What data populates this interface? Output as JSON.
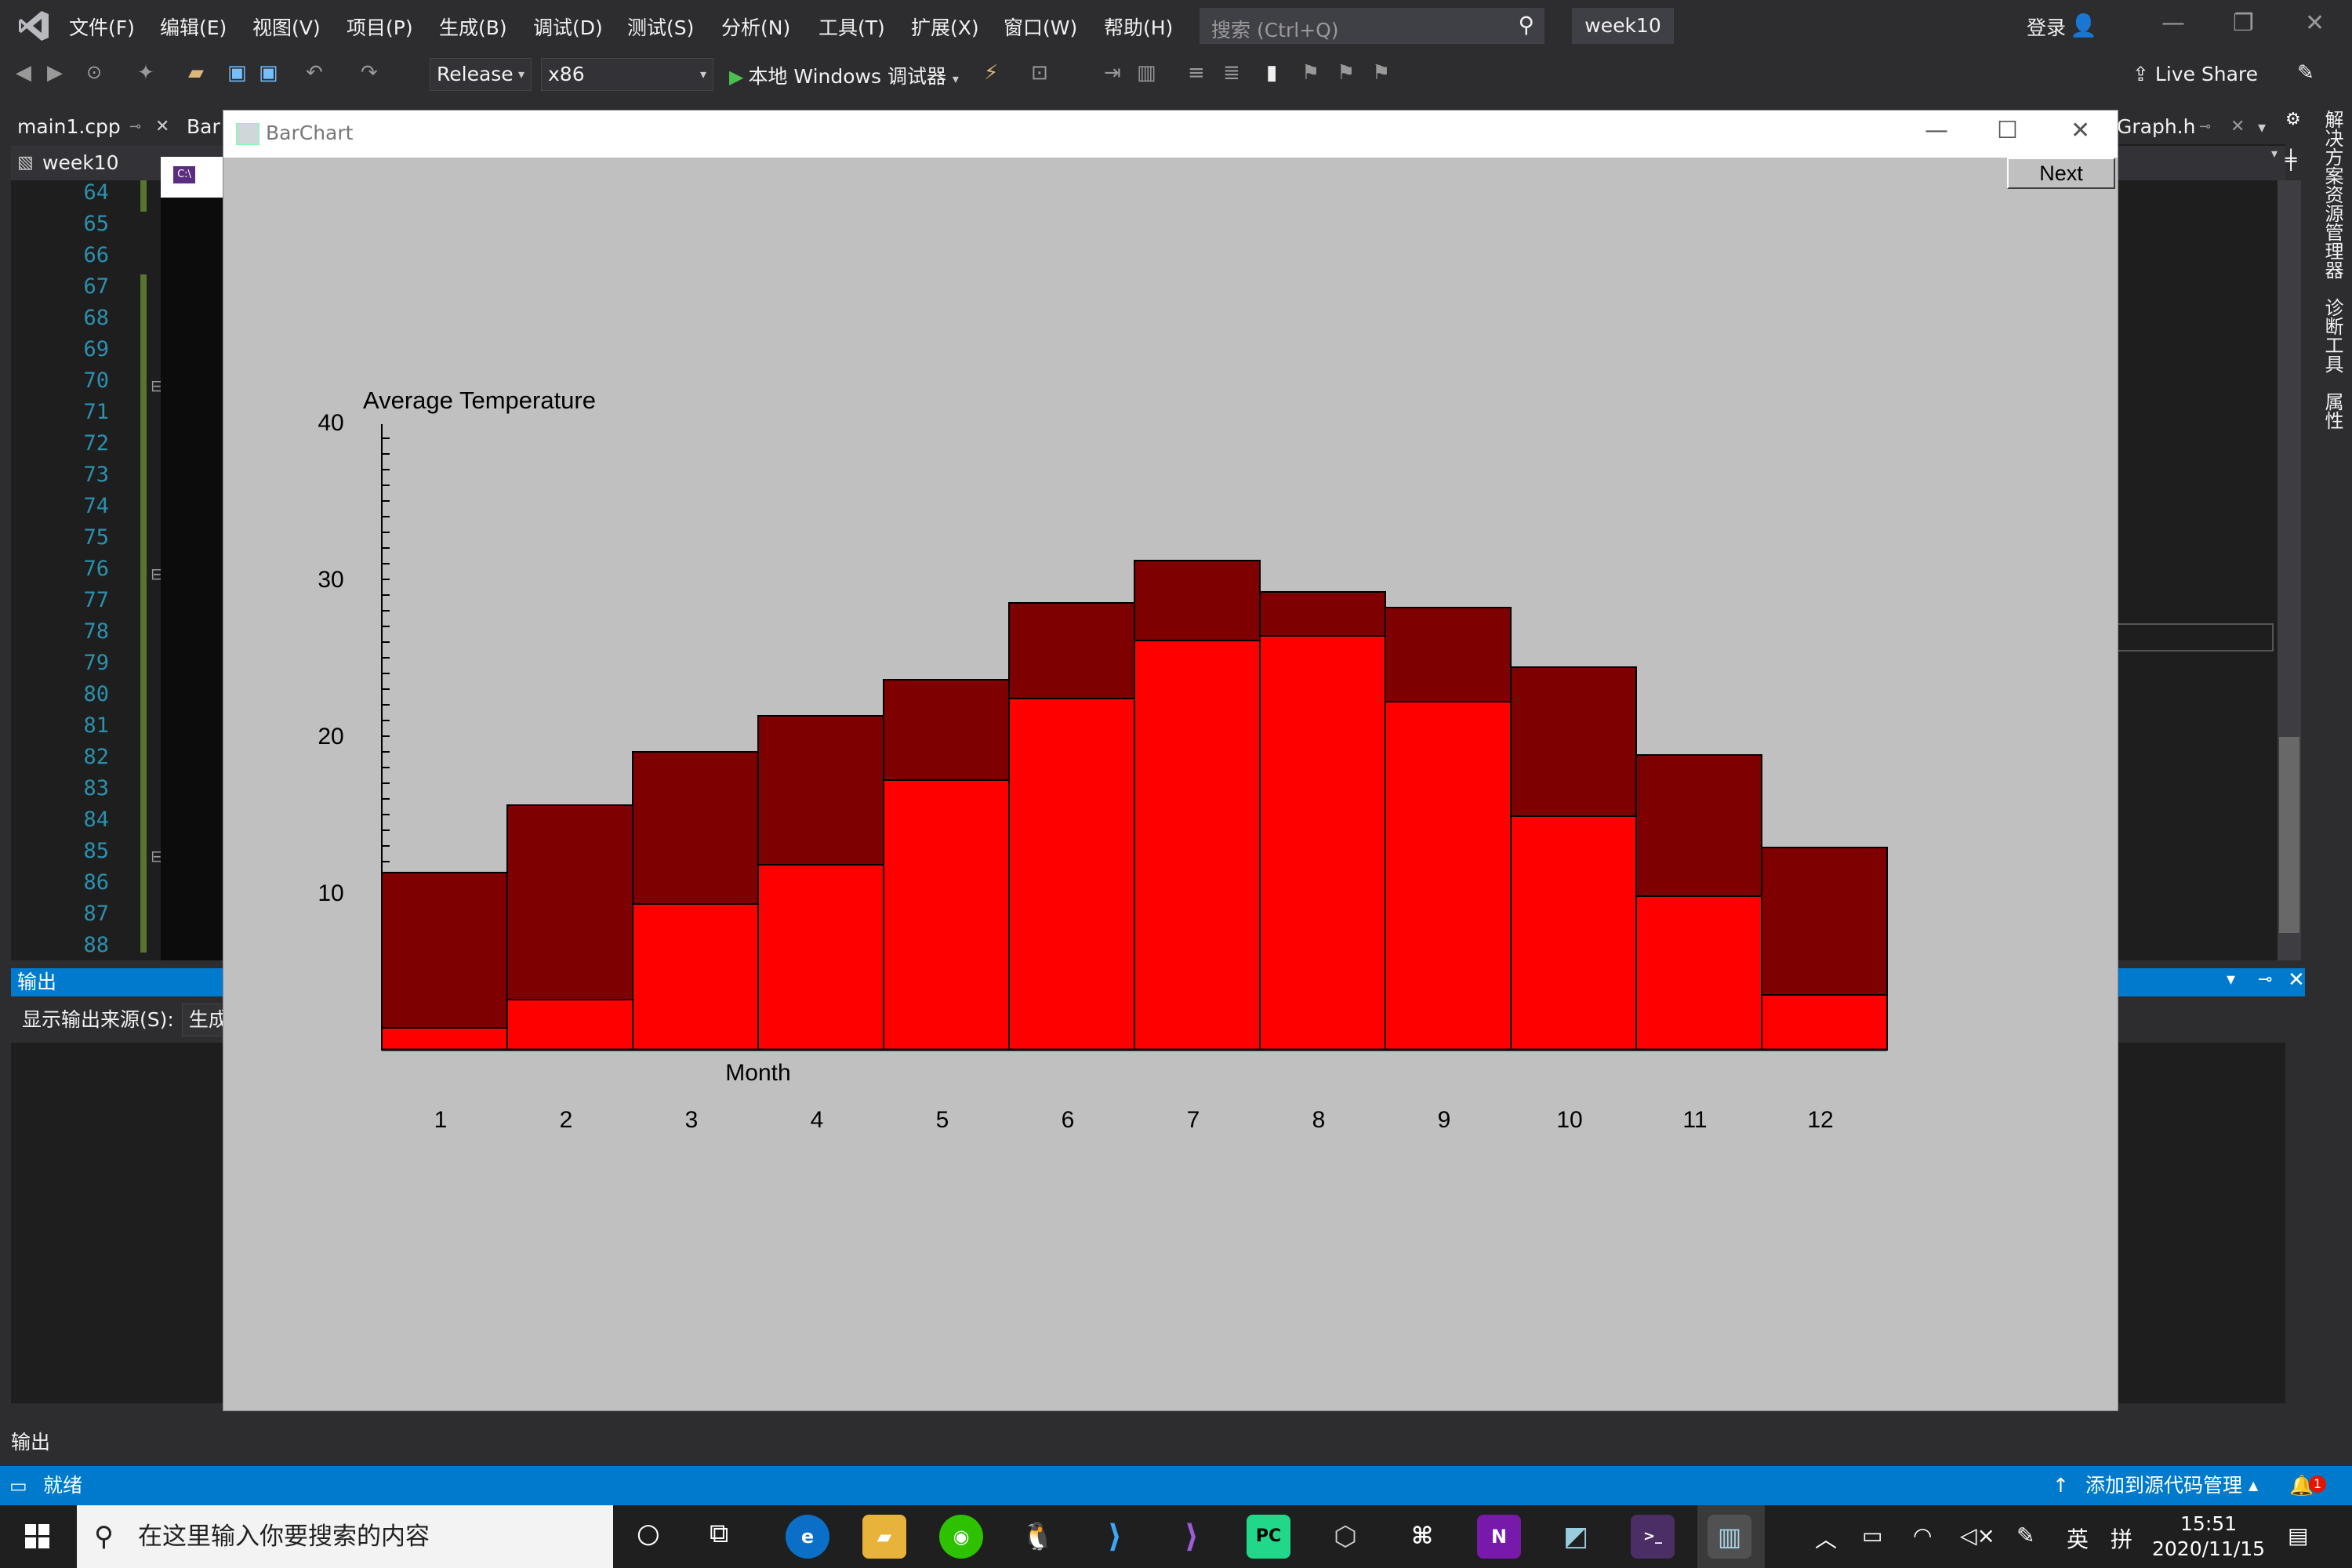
{
  "menubar": {
    "items": [
      "文件(F)",
      "编辑(E)",
      "视图(V)",
      "项目(P)",
      "生成(B)",
      "调试(D)",
      "测试(S)",
      "分析(N)",
      "工具(T)",
      "扩展(X)",
      "窗口(W)",
      "帮助(H)"
    ],
    "search_placeholder": "搜索 (Ctrl+Q)",
    "solution_name": "week10",
    "login": "登录"
  },
  "toolbar": {
    "config": "Release",
    "platform": "x86",
    "run_label": "本地 Windows 调试器",
    "live_share": "Live Share"
  },
  "tabs": {
    "main_tab": "main1.cpp",
    "second_tab": "Bar",
    "scope": "week10",
    "right_tab": "Graph.h"
  },
  "editor": {
    "line_numbers": [
      "64",
      "65",
      "66",
      "67",
      "68",
      "69",
      "70",
      "71",
      "72",
      "73",
      "74",
      "75",
      "76",
      "77",
      "78",
      "79",
      "80",
      "81",
      "82",
      "83",
      "84",
      "85",
      "86",
      "87",
      "88"
    ]
  },
  "output": {
    "header": "输出",
    "source_label": "显示输出来源(S):",
    "source_value": "生成",
    "bottom_tab": "输出"
  },
  "dock_labels": [
    "解决方案资源管理器",
    "诊断工具",
    "属性"
  ],
  "statusbar": {
    "ready": "就绪",
    "source_control": "添加到源代码管理",
    "notifications": "1"
  },
  "taskbar": {
    "search_placeholder": "在这里输入你要搜索的内容",
    "ime": "英",
    "time": "15:51",
    "date": "2020/11/15"
  },
  "chart_window": {
    "title": "BarChart",
    "next_label": "Next"
  },
  "chart_data": {
    "type": "bar",
    "title": "Average Temperature",
    "xlabel": "Month",
    "ylabel": "",
    "categories": [
      "1",
      "2",
      "3",
      "4",
      "5",
      "6",
      "7",
      "8",
      "9",
      "10",
      "11",
      "12"
    ],
    "yticks": [
      "10",
      "20",
      "30",
      "40"
    ],
    "ylim": [
      0,
      40
    ],
    "series": [
      {
        "name": "",
        "color": "#7f0000",
        "values": [
          11.3,
          15.6,
          19.0,
          21.3,
          23.6,
          28.5,
          31.2,
          29.2,
          28.2,
          24.4,
          18.8,
          12.9
        ]
      },
      {
        "name": "",
        "color": "#ff0000",
        "values": [
          1.4,
          3.2,
          9.3,
          11.8,
          17.2,
          22.4,
          26.1,
          26.4,
          22.2,
          14.9,
          9.8,
          3.5
        ]
      }
    ]
  }
}
